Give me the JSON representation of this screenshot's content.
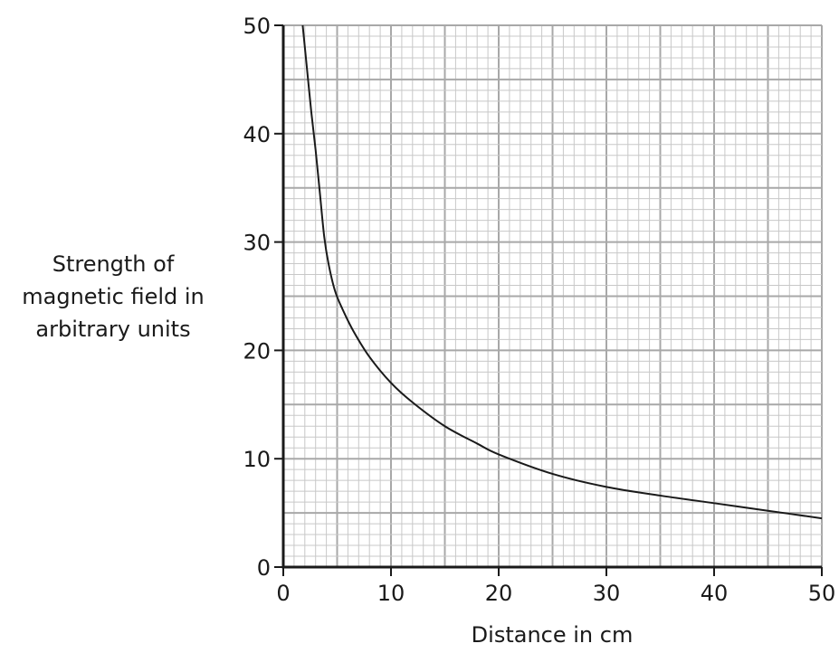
{
  "chart_data": {
    "type": "line",
    "xlabel": "Distance in cm",
    "ylabel_lines": [
      "Strength of",
      "magnetic field in",
      "arbitrary units"
    ],
    "xlim": [
      0,
      50
    ],
    "ylim": [
      0,
      50
    ],
    "x_ticks": [
      0,
      10,
      20,
      30,
      40,
      50
    ],
    "y_ticks": [
      0,
      10,
      20,
      30,
      40,
      50
    ],
    "grid": true,
    "minor_grid_step": 1,
    "major_grid_step": 5,
    "line_color": "#1a1a1a",
    "grid_minor_color": "#c8c8c8",
    "grid_major_color": "#a8a8a8",
    "series": [
      {
        "x": [
          1.8,
          2.2,
          2.6,
          3.0,
          3.4,
          3.8,
          4.2,
          4.8,
          5.5,
          6.5,
          8,
          10,
          12,
          15,
          18,
          20,
          25,
          30,
          35,
          40,
          45,
          50
        ],
        "y": [
          50,
          46,
          42,
          38.5,
          34.5,
          30.5,
          28,
          25.5,
          23.8,
          21.8,
          19.4,
          17,
          15.2,
          13,
          11.4,
          10.4,
          8.6,
          7.4,
          6.6,
          5.9,
          5.2,
          4.5
        ]
      }
    ]
  }
}
